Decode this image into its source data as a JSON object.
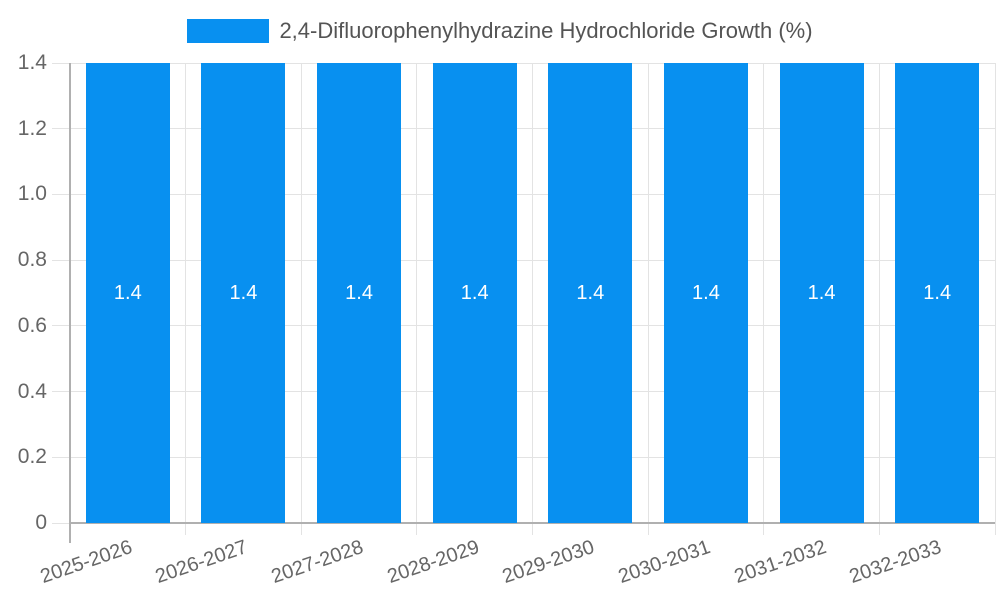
{
  "chart_data": {
    "type": "bar",
    "legend_label": "2,4-Difluorophenylhydrazine Hydrochloride Growth (%)",
    "legend_position": "top",
    "categories": [
      "2025-2026",
      "2026-2027",
      "2027-2028",
      "2028-2029",
      "2029-2030",
      "2030-2031",
      "2031-2032",
      "2032-2033"
    ],
    "values": [
      1.4,
      1.4,
      1.4,
      1.4,
      1.4,
      1.4,
      1.4,
      1.4
    ],
    "bar_value_labels": [
      "1.4",
      "1.4",
      "1.4",
      "1.4",
      "1.4",
      "1.4",
      "1.4",
      "1.4"
    ],
    "xlabel": "",
    "ylabel": "",
    "ylim": [
      0,
      1.4
    ],
    "ytick_step": 0.2,
    "ytick_labels": [
      "0",
      "0.2",
      "0.4",
      "0.6",
      "0.8",
      "1.0",
      "1.2",
      "1.4"
    ],
    "grid": true,
    "colors": {
      "bar": "#0890f0",
      "grid_line": "#e3e3e3",
      "axis_line": "#b0b0b0",
      "tick_label": "#666666",
      "legend_text": "#545454",
      "bar_value_label": "#ffffff",
      "background": "#ffffff"
    }
  }
}
